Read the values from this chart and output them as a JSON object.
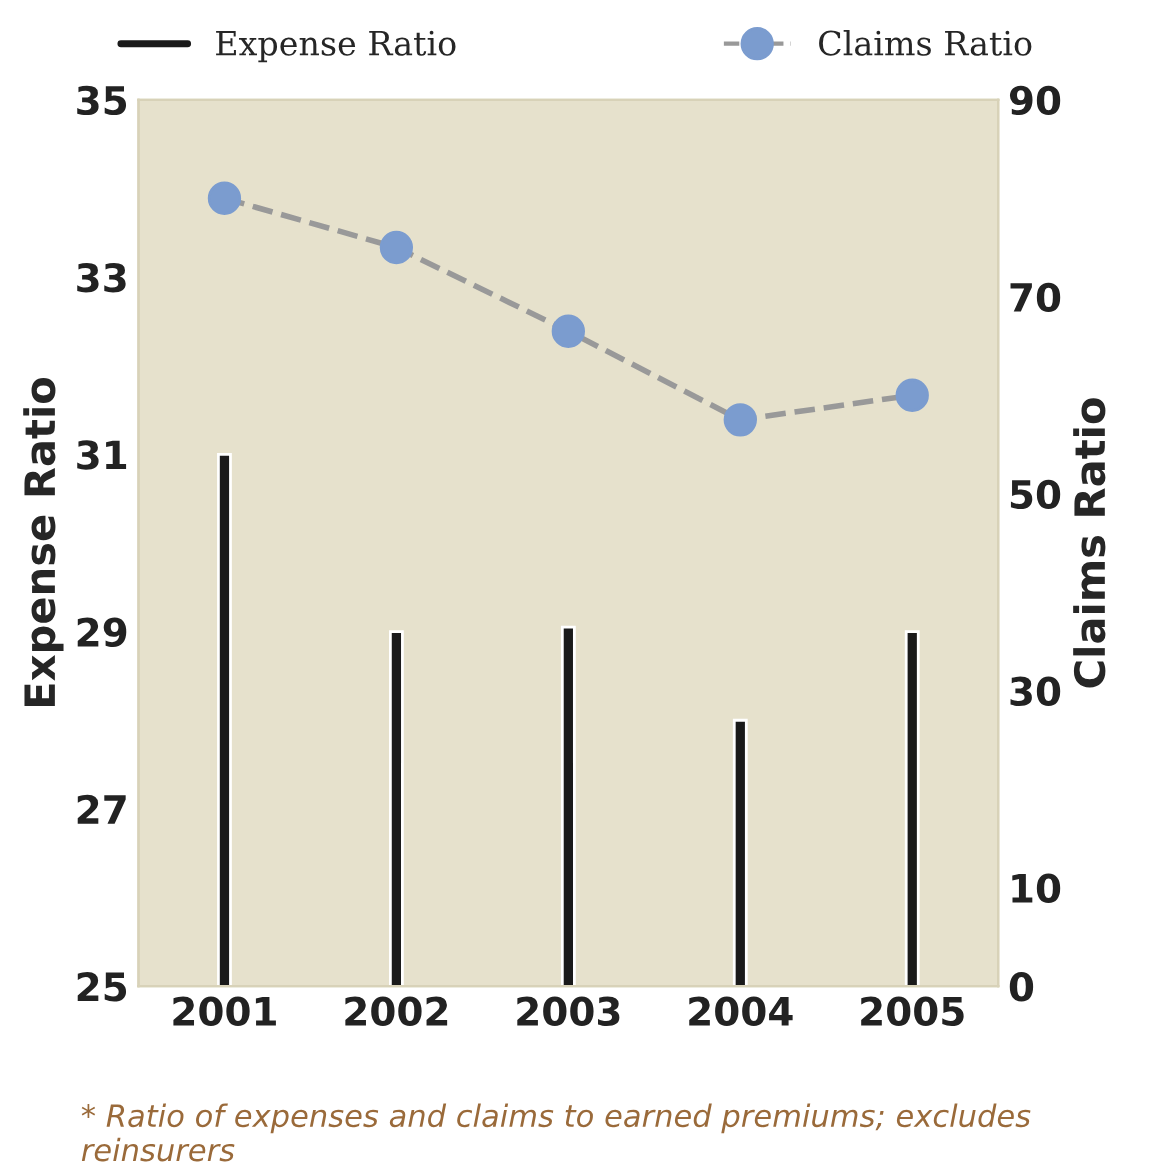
{
  "chart_data": {
    "type": "bar",
    "categories": [
      "2001",
      "2002",
      "2003",
      "2004",
      "2005"
    ],
    "series": [
      {
        "name": "Expense Ratio",
        "color": "#1a1a1a",
        "values": [
          31.0,
          29.0,
          29.05,
          28.0,
          29.0
        ]
      },
      {
        "name": "Claims Ratio",
        "type": "line",
        "axis": "y2",
        "color": "#7b9ccf",
        "marker": "circle",
        "line_style": "dashed",
        "values": [
          80,
          75,
          66.5,
          57.5,
          60
        ]
      }
    ],
    "ylabel": "Expense Ratio",
    "y2label": "Claims Ratio",
    "ylim": [
      25,
      35
    ],
    "yticks": [
      25,
      27,
      29,
      31,
      33,
      35
    ],
    "y2lim": [
      0,
      90
    ],
    "y2ticks": [
      0,
      10,
      30,
      50,
      70,
      90
    ],
    "grid": false,
    "legend": "top",
    "annotations": [
      "* Ratio of expenses and claims to earned premiums; excludes reinsurers"
    ]
  }
}
